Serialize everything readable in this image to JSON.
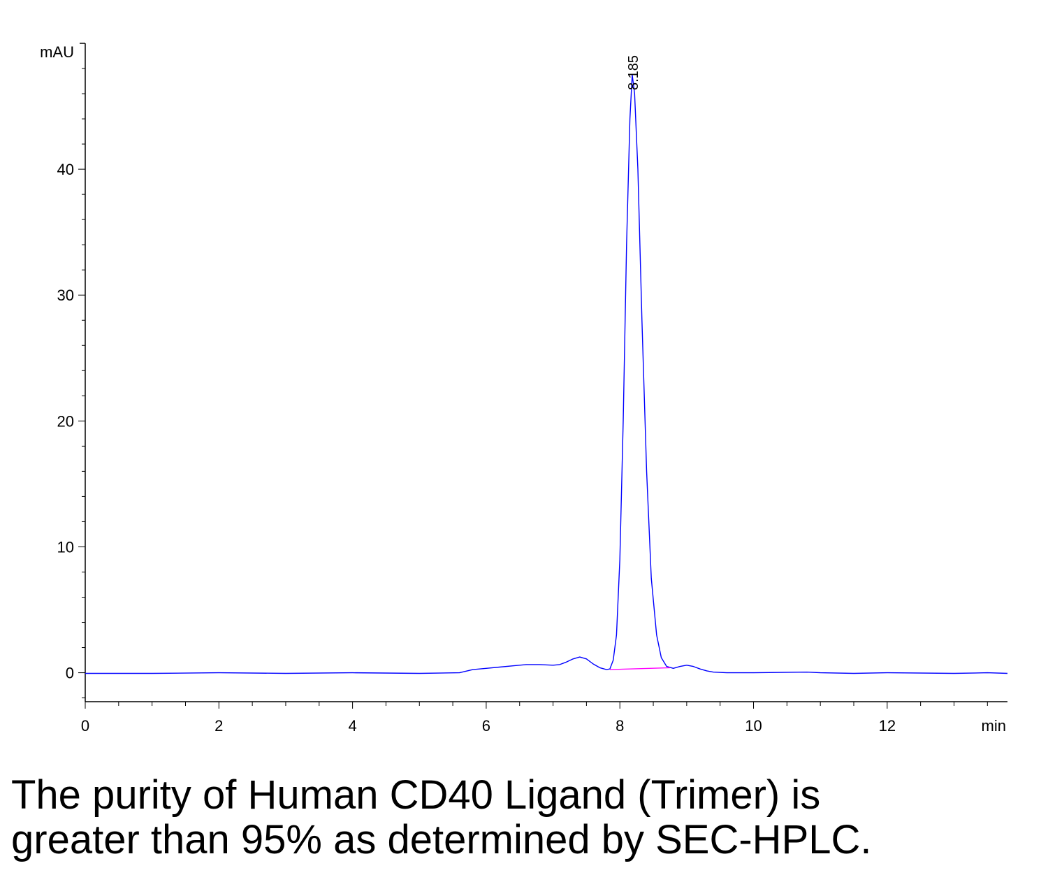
{
  "chart_data": {
    "type": "line",
    "ylabel": "mAU",
    "xlabel": "min",
    "xlim": [
      0,
      13.8
    ],
    "ylim": [
      -2.3,
      50
    ],
    "x_ticks": [
      0,
      2,
      4,
      6,
      8,
      10,
      12
    ],
    "y_ticks": [
      0,
      10,
      20,
      30,
      40
    ],
    "series": [
      {
        "color": "#0000ff",
        "points": [
          [
            0,
            -0.05
          ],
          [
            1.0,
            -0.05
          ],
          [
            2.0,
            0.0
          ],
          [
            3.0,
            -0.05
          ],
          [
            4.0,
            0.0
          ],
          [
            5.0,
            -0.05
          ],
          [
            5.6,
            0.0
          ],
          [
            5.8,
            0.25
          ],
          [
            6.0,
            0.35
          ],
          [
            6.2,
            0.45
          ],
          [
            6.4,
            0.55
          ],
          [
            6.6,
            0.65
          ],
          [
            6.8,
            0.65
          ],
          [
            7.0,
            0.6
          ],
          [
            7.1,
            0.65
          ],
          [
            7.2,
            0.85
          ],
          [
            7.3,
            1.1
          ],
          [
            7.4,
            1.25
          ],
          [
            7.5,
            1.1
          ],
          [
            7.6,
            0.7
          ],
          [
            7.7,
            0.4
          ],
          [
            7.8,
            0.25
          ],
          [
            7.85,
            0.3
          ],
          [
            7.9,
            1.0
          ],
          [
            7.95,
            3.0
          ],
          [
            8.0,
            9.0
          ],
          [
            8.05,
            20.0
          ],
          [
            8.1,
            34.0
          ],
          [
            8.15,
            44.0
          ],
          [
            8.185,
            47.5
          ],
          [
            8.22,
            46.0
          ],
          [
            8.27,
            40.0
          ],
          [
            8.33,
            28.0
          ],
          [
            8.4,
            16.0
          ],
          [
            8.47,
            7.5
          ],
          [
            8.55,
            3.0
          ],
          [
            8.62,
            1.2
          ],
          [
            8.7,
            0.5
          ],
          [
            8.8,
            0.35
          ],
          [
            8.9,
            0.5
          ],
          [
            9.0,
            0.6
          ],
          [
            9.1,
            0.5
          ],
          [
            9.2,
            0.3
          ],
          [
            9.3,
            0.15
          ],
          [
            9.4,
            0.05
          ],
          [
            9.6,
            0.0
          ],
          [
            10.0,
            0.0
          ],
          [
            10.8,
            0.05
          ],
          [
            11.0,
            0.0
          ],
          [
            11.5,
            -0.05
          ],
          [
            12.0,
            0.0
          ],
          [
            13.0,
            -0.05
          ],
          [
            13.5,
            0.0
          ],
          [
            13.8,
            -0.05
          ]
        ]
      },
      {
        "color": "#ff00ff",
        "points": [
          [
            7.85,
            0.25
          ],
          [
            8.75,
            0.4
          ]
        ]
      }
    ],
    "annotations": [
      {
        "text": "8.185",
        "x": 8.185,
        "y": 47.5
      }
    ]
  },
  "caption": {
    "line1": "The purity of Human CD40 Ligand (Trimer) is",
    "line2": "greater than 95% as determined by SEC-HPLC."
  }
}
